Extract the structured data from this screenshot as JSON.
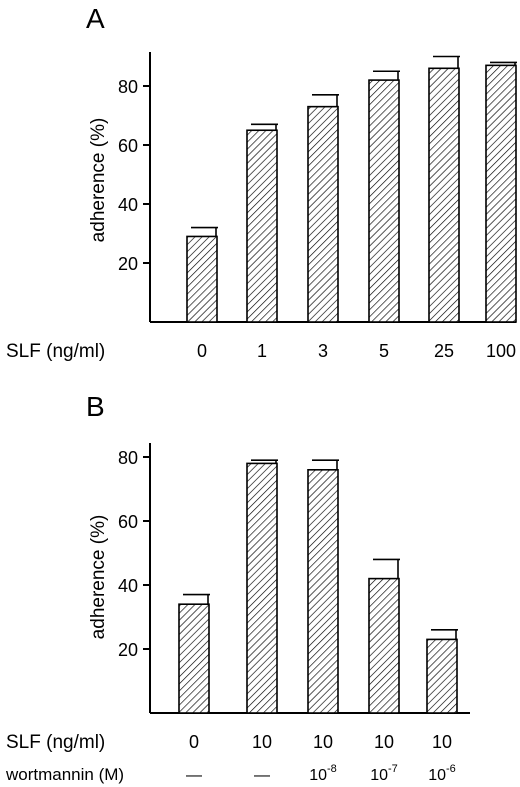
{
  "colors": {
    "ink": "#000000",
    "background": "#ffffff",
    "bar_fill": "hatched diagonal black lines on white"
  },
  "chart_data": [
    {
      "panel": "A",
      "type": "bar",
      "title": "",
      "ylabel": "adherence (%)",
      "ylim": [
        0,
        90
      ],
      "yticks": [
        20,
        40,
        60,
        80
      ],
      "row_labels": [
        {
          "label": "SLF (ng/ml)",
          "categories": [
            "0",
            "1",
            "3",
            "5",
            "25",
            "100"
          ]
        }
      ],
      "values": [
        29,
        65,
        73,
        82,
        86,
        87
      ],
      "error_upper": [
        32,
        67,
        77,
        85,
        90,
        88
      ],
      "grid": false,
      "legend": "none"
    },
    {
      "panel": "B",
      "type": "bar",
      "title": "",
      "ylabel": "adherence (%)",
      "ylim": [
        0,
        90
      ],
      "yticks": [
        20,
        40,
        60,
        80
      ],
      "row_labels": [
        {
          "label": "SLF (ng/ml)",
          "categories": [
            "0",
            "10",
            "10",
            "10",
            "10"
          ]
        },
        {
          "label": "wortmannin (M)",
          "categories": [
            "—",
            "—",
            "10^-8",
            "10^-7",
            "10^-6"
          ]
        }
      ],
      "values": [
        34,
        78,
        76,
        42,
        23
      ],
      "error_upper": [
        37,
        79,
        79,
        48,
        26
      ],
      "grid": false,
      "legend": "none"
    }
  ]
}
